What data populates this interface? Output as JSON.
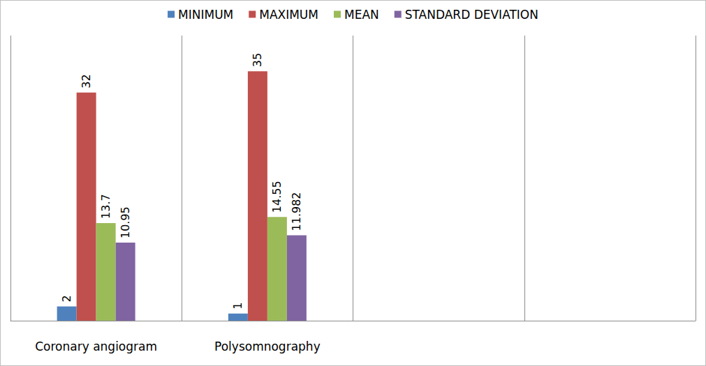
{
  "chart_data": {
    "type": "bar",
    "categories": [
      "Coronary angiogram",
      "Polysomnography",
      null,
      null
    ],
    "series": [
      {
        "name": "MINIMUM",
        "color": "#4f81bd",
        "values": [
          2,
          1,
          null,
          null
        ]
      },
      {
        "name": "MAXIMUM",
        "color": "#c0504d",
        "values": [
          32,
          35,
          null,
          null
        ]
      },
      {
        "name": "MEAN",
        "color": "#9bbb59",
        "values": [
          13.7,
          14.55,
          null,
          null
        ]
      },
      {
        "name": "STANDARD DEVIATION",
        "color": "#8064a2",
        "values": [
          10.95,
          11.982,
          null,
          null
        ]
      }
    ],
    "ylim": [
      0,
      40
    ],
    "yticks": [
      0,
      10,
      20,
      30,
      40
    ],
    "grid": false,
    "legend": "top",
    "data_labels": true,
    "tick_labels": "x"
  }
}
